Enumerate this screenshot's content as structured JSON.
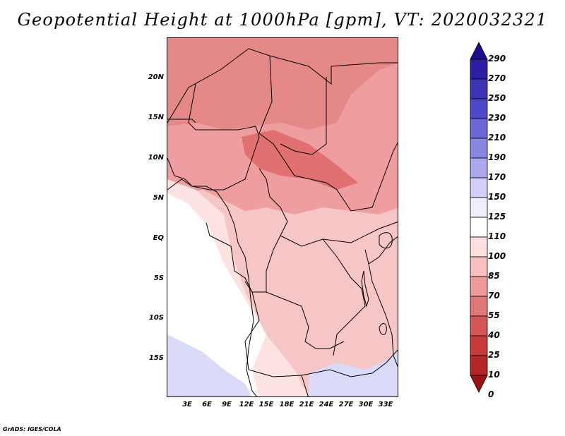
{
  "title": "Geopotential Height at 1000hPa [gpm], VT: 2020032321",
  "credit": "GrADS: IGES/COLA",
  "latitude_ticks": [
    "20N",
    "15N",
    "10N",
    "5N",
    "EQ",
    "5S",
    "10S",
    "15S"
  ],
  "longitude_ticks": [
    "3E",
    "6E",
    "9E",
    "12E",
    "15E",
    "18E",
    "21E",
    "24E",
    "27E",
    "30E",
    "33E"
  ],
  "colorbar": {
    "levels": [
      "290",
      "270",
      "250",
      "230",
      "210",
      "190",
      "170",
      "150",
      "125",
      "110",
      "100",
      "85",
      "70",
      "55",
      "40",
      "25",
      "10",
      "0"
    ],
    "colors": [
      "#1a0e8c",
      "#2d1fa5",
      "#3b33b8",
      "#4d48c9",
      "#6c66d8",
      "#8a86e3",
      "#aaa8ee",
      "#cfcff7",
      "#eeeefc",
      "#ffffff",
      "#fde0e0",
      "#f8c0c0",
      "#ee9a9a",
      "#e07878",
      "#d65555",
      "#c83a3a",
      "#b52626",
      "#9c1212"
    ]
  },
  "map": {
    "fill_colors": {
      "highest": "#e17070",
      "high": "#e58888",
      "mid": "#ee9e9e",
      "low": "#f6c6c6",
      "lowest": "#fde2e2",
      "neutral": "#ffffff",
      "negative": "#d8daf8"
    }
  }
}
